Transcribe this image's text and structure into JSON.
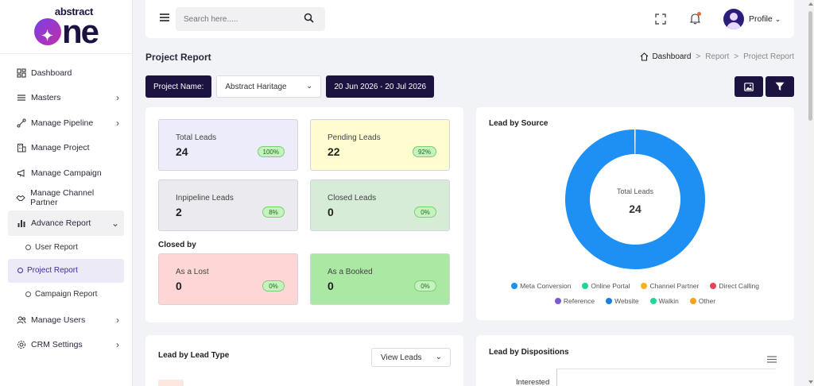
{
  "logo": {
    "top_text": "abstract",
    "main_text": "ne"
  },
  "sidebar": {
    "items": [
      {
        "label": "Dashboard",
        "icon": "dashboard-icon"
      },
      {
        "label": "Masters",
        "icon": "list-icon"
      },
      {
        "label": "Manage Pipeline",
        "icon": "pipeline-icon"
      },
      {
        "label": "Manage Project",
        "icon": "building-icon"
      },
      {
        "label": "Manage Campaign",
        "icon": "megaphone-icon"
      },
      {
        "label": "Manage Channel Partner",
        "icon": "handshake-icon"
      },
      {
        "label": "Advance Report",
        "icon": "bar-chart-icon"
      }
    ],
    "sub_items": [
      {
        "label": "User Report"
      },
      {
        "label": "Project Report"
      },
      {
        "label": "Campaign Report"
      }
    ],
    "bottom_items": [
      {
        "label": "Manage Users",
        "icon": "users-icon"
      },
      {
        "label": "CRM Settings",
        "icon": "gear-icon"
      }
    ]
  },
  "header": {
    "search_placeholder": "Search here.....",
    "profile_label": "Profile"
  },
  "page": {
    "title": "Project Report",
    "breadcrumb": [
      "Dashboard",
      "Report",
      "Project Report"
    ],
    "breadcrumb_sep": ">"
  },
  "filters": {
    "project_name_label": "Project Name:",
    "project_value": "Abstract Haritage",
    "date_range": "20 Jun 2026 - 20 Jul 2026"
  },
  "stats": {
    "total": {
      "label": "Total Leads",
      "value": "24",
      "badge": "100%"
    },
    "pending": {
      "label": "Pending Leads",
      "value": "22",
      "badge": "92%"
    },
    "inpipeline": {
      "label": "Inpipeline Leads",
      "value": "2",
      "badge": "8%"
    },
    "closed": {
      "label": "Closed Leads",
      "value": "0",
      "badge": "0%"
    },
    "closed_by_title": "Closed by",
    "lost": {
      "label": "As a Lost",
      "value": "0",
      "badge": "0%"
    },
    "booked": {
      "label": "As a Booked",
      "value": "0",
      "badge": "0%"
    }
  },
  "colors": {
    "total_bg": "#ececfb",
    "pending_bg": "#fdfdcf",
    "inpipeline_bg": "#ebebef",
    "closed_bg": "#d6ecd6",
    "lost_bg": "#ffd6d6",
    "booked_bg": "#aae8a4",
    "primary_dark": "#1c1340"
  },
  "donut": {
    "title": "Lead by Source",
    "center_label": "Total Leads",
    "center_value": "24"
  },
  "chart_data": {
    "type": "pie",
    "title": "Lead by Source",
    "categories": [
      "Meta Conversion",
      "Online Portal",
      "Channel Partner",
      "Direct Calling",
      "Reference",
      "Website",
      "Walkin",
      "Other"
    ],
    "values": [
      24,
      0,
      0,
      0,
      0,
      0,
      0,
      0
    ],
    "colors": [
      "#1e8ff3",
      "#1fd39a",
      "#f5b320",
      "#f0405a",
      "#7b5bd6",
      "#1a7fe0",
      "#28d495",
      "#f5a31c"
    ],
    "legend": "bottom"
  },
  "lead_type": {
    "title": "Lead by Lead Type",
    "view_label": "View Leads"
  },
  "dispositions": {
    "title": "Lead by Dispositions",
    "first_category": "Interested"
  }
}
